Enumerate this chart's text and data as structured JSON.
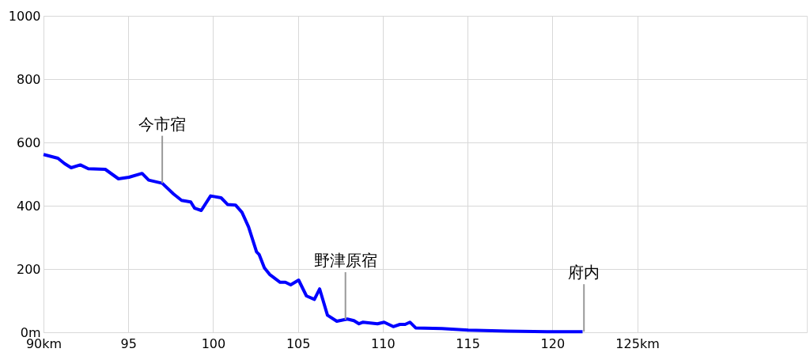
{
  "chart_data": {
    "type": "line",
    "x": [
      90.0,
      90.85,
      91.24,
      91.63,
      92.17,
      92.64,
      93.64,
      94.42,
      95.04,
      95.81,
      96.2,
      97.0,
      97.67,
      98.14,
      98.68,
      98.91,
      99.3,
      99.85,
      100.47,
      100.85,
      101.32,
      101.7,
      102.09,
      102.56,
      102.71,
      103.02,
      103.33,
      103.95,
      104.26,
      104.57,
      105.04,
      105.5,
      105.97,
      106.28,
      106.74,
      107.29,
      107.91,
      108.3,
      108.6,
      108.84,
      109.69,
      110.08,
      110.62,
      111.01,
      111.32,
      111.6,
      111.94,
      113.49,
      115.04,
      117.36,
      119.69,
      121.78
    ],
    "series": [
      {
        "color": "#0000ff",
        "values": [
          562,
          550,
          533,
          520,
          529,
          517,
          515,
          485,
          490,
          502,
          481,
          471,
          437,
          417,
          412,
          392,
          385,
          431,
          425,
          404,
          402,
          379,
          333,
          254,
          246,
          204,
          183,
          158,
          158,
          150,
          165,
          115,
          104,
          137,
          54,
          35,
          42,
          37,
          27,
          32,
          27,
          32,
          18,
          25,
          25,
          32,
          14,
          12,
          7,
          4,
          2,
          2
        ]
      }
    ],
    "xlim": [
      90,
      135
    ],
    "ylim": [
      0,
      1000
    ],
    "xticks": [
      {
        "value": 90,
        "label": "90km"
      },
      95,
      100,
      105,
      110,
      115,
      120,
      {
        "value": 125,
        "label": "125km"
      }
    ],
    "yticks": [
      {
        "value": 0,
        "label": "0m"
      },
      200,
      400,
      600,
      800,
      1000
    ],
    "grid": true,
    "marker": "none",
    "line_style": "solid",
    "annotations": [
      {
        "text": "今市宿",
        "x": 97.0,
        "y": 471
      },
      {
        "text": "野津原宿",
        "x": 107.8,
        "y": 40
      },
      {
        "text": "府内",
        "x": 121.86,
        "y": 2
      }
    ]
  }
}
